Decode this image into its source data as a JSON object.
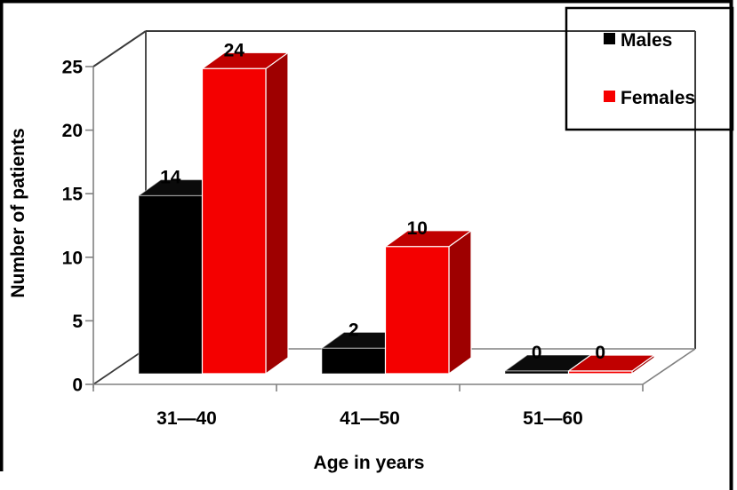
{
  "chart_data": {
    "type": "bar",
    "style": "3d-clustered-column",
    "title": "",
    "categories": [
      "31—40",
      "41—50",
      "51—60"
    ],
    "series": [
      {
        "name": "Males",
        "values": [
          14,
          2,
          0
        ],
        "color": "#000000",
        "face_colors": {
          "front": "#000000",
          "top": "#0b0b0b",
          "side": "#040404"
        }
      },
      {
        "name": "Females",
        "values": [
          24,
          10,
          0
        ],
        "color": "#f70000",
        "face_colors": {
          "front": "#f40000",
          "top": "#c00000",
          "side": "#9e0000"
        }
      }
    ],
    "xlabel": "Age in years",
    "ylabel": "Number of patients",
    "ylim": [
      0,
      25
    ],
    "yticks": [
      0,
      5,
      10,
      15,
      20,
      25
    ],
    "grid": false,
    "data_labels": true,
    "legend_position": "top-right"
  },
  "frame": {
    "background": "#ffffff",
    "wall_line_color": "#3a3a3a",
    "floor_line_color": "#808080",
    "border_color": "#000000",
    "text_color": "#000000"
  }
}
